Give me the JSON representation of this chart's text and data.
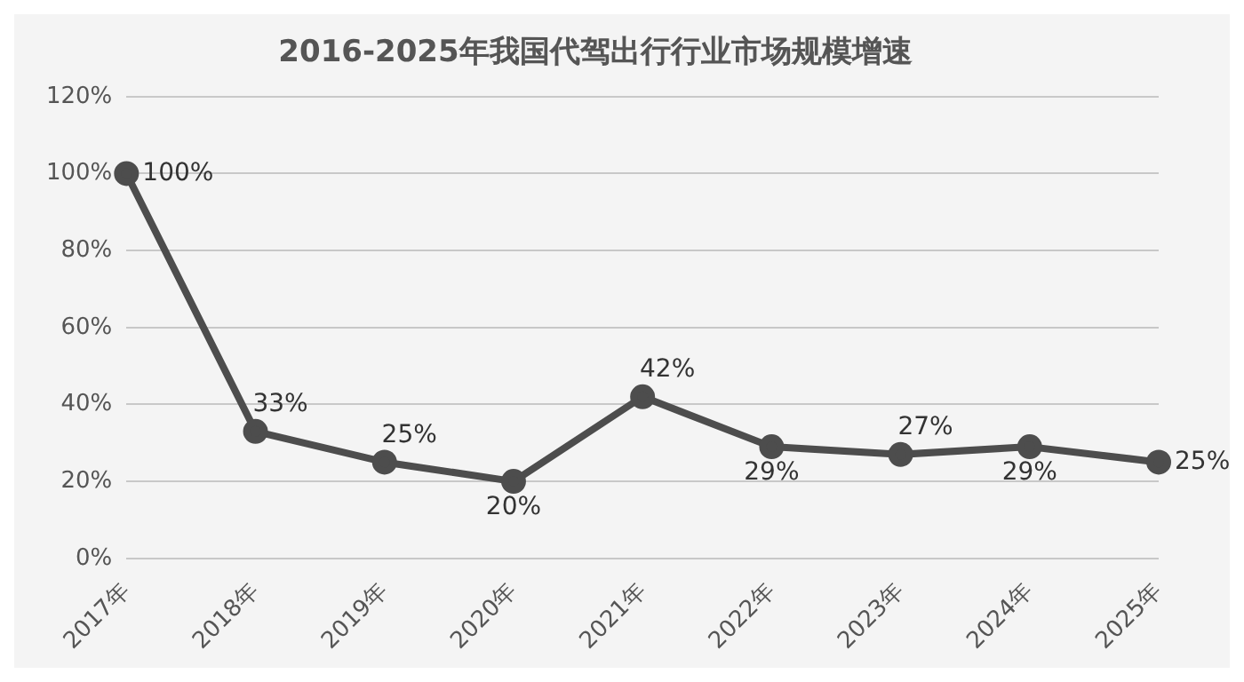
{
  "chart_data": {
    "type": "line",
    "title": "2016-2025年我国代驾出行行业市场规模增速",
    "categories": [
      "2017年",
      "2018年",
      "2019年",
      "2020年",
      "2021年",
      "2022年",
      "2023年",
      "2024年",
      "2025年"
    ],
    "series": [
      {
        "color": "#4d4d4d",
        "values": [
          100,
          33,
          25,
          20,
          42,
          29,
          27,
          29,
          25
        ],
        "value_labels": [
          "100%",
          "33%",
          "25%",
          "20%",
          "42%",
          "29%",
          "27%",
          "29%",
          "25%"
        ]
      }
    ],
    "ylim": [
      0,
      120
    ],
    "yticks": [
      {
        "value": 0,
        "label": "0%"
      },
      {
        "value": 20,
        "label": "20%"
      },
      {
        "value": 40,
        "label": "40%"
      },
      {
        "value": 60,
        "label": "60%"
      },
      {
        "value": 80,
        "label": "80%"
      },
      {
        "value": 100,
        "label": "100%"
      },
      {
        "value": 120,
        "label": "120%"
      }
    ],
    "grid": "y",
    "legend": false,
    "marker": "circle",
    "line_style": "solid"
  }
}
